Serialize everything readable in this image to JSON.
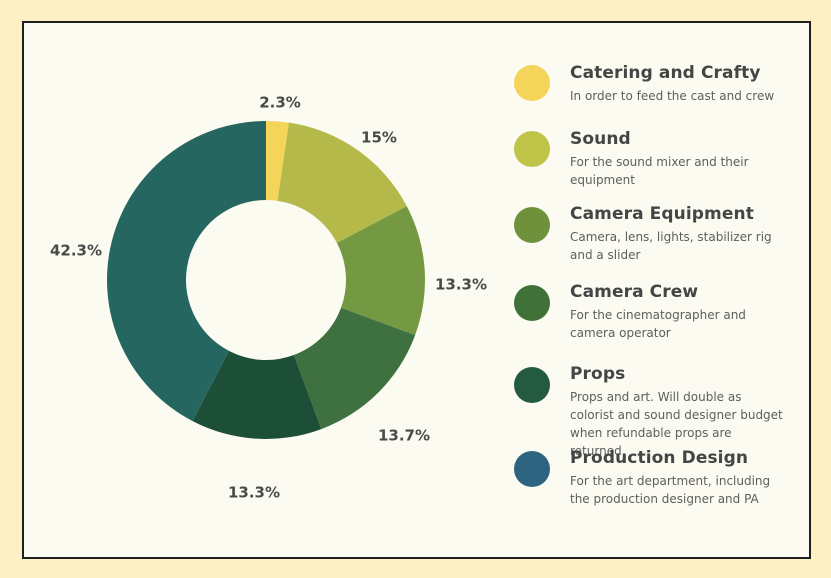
{
  "chart_data": {
    "type": "pie",
    "style": "donut",
    "title": "",
    "slices": [
      {
        "label": "Catering and Crafty",
        "value": 2.3,
        "display": "2.3%",
        "color": "#f5d45a",
        "description": "In order to feed the cast and crew"
      },
      {
        "label": "Sound",
        "value": 15,
        "display": "15%",
        "color": "#b5b949",
        "description": "For the sound mixer and their equipment"
      },
      {
        "label": "Camera Equipment",
        "value": 13.3,
        "display": "13.3%",
        "color": "#759942",
        "description": "Camera, lens, lights, stabilizer rig and a slider"
      },
      {
        "label": "Camera Crew",
        "value": 13.7,
        "display": "13.7%",
        "color": "#3f7140",
        "description": "For the cinematographer and camera operator"
      },
      {
        "label": "Props",
        "value": 13.3,
        "display": "13.3%",
        "color": "#1d4f38",
        "description": "Props and art. Will double as colorist and sound designer budget when refundable props are returned"
      },
      {
        "label": "Production Design",
        "value": 42.3,
        "display": "42.3%",
        "color": "#256660",
        "description": "For the art department, including the production designer and PA"
      }
    ],
    "legend_placement": "right"
  },
  "legend": {
    "items": [
      {
        "title": "Catering and Crafty",
        "desc": "In order to feed the cast and crew",
        "color": "#f5d45a"
      },
      {
        "title": "Sound",
        "desc": "For the sound mixer and their equipment",
        "color": "#bfc448"
      },
      {
        "title": "Camera Equipment",
        "desc": "Camera, lens, lights, stabilizer rig and a slider",
        "color": "#6f913c"
      },
      {
        "title": "Camera Crew",
        "desc": "For the cinematographer and camera operator",
        "color": "#3f7138"
      },
      {
        "title": "Props",
        "desc": "Props and art. Will double as colorist and sound designer budget when refundable props are returned",
        "color": "#245a40"
      },
      {
        "title": "Production Design",
        "desc": "For the art department, including the production designer and PA",
        "color": "#2e6480"
      }
    ]
  }
}
